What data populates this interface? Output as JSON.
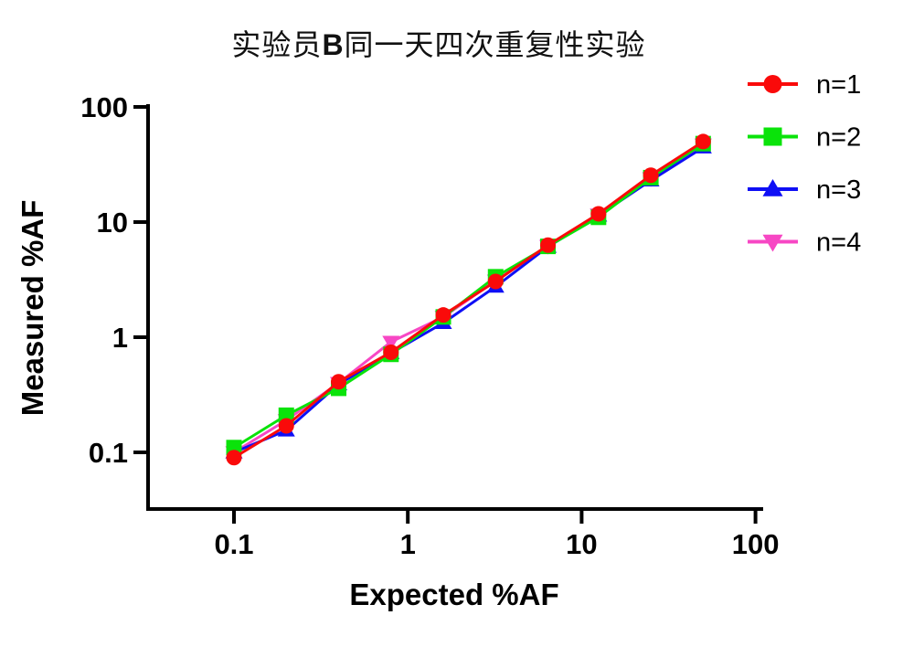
{
  "figure": {
    "title": {
      "prefix": "实验员",
      "bold_part": "B",
      "suffix": "同一天四次重复性实验"
    }
  },
  "chart_data": {
    "type": "line",
    "title": "实验员B同一天四次重复性实验",
    "xlabel": "Expected %AF",
    "ylabel": "Measured %AF",
    "x_scale": "log",
    "y_scale": "log",
    "x_ticks": [
      0.1,
      1,
      10,
      100
    ],
    "y_ticks": [
      0.1,
      1,
      10,
      100
    ],
    "x_range": [
      0.032,
      110
    ],
    "y_range": [
      0.032,
      105
    ],
    "grid": false,
    "legend_position": "right-top",
    "axis_color": "#000000",
    "x": [
      0.1,
      0.2,
      0.4,
      0.8,
      1.6,
      3.2,
      6.4,
      12.5,
      25,
      50
    ],
    "series": [
      {
        "name": "n=1",
        "color": "#FA0A0A",
        "marker": "circle",
        "values": [
          0.09,
          0.17,
          0.41,
          0.74,
          1.56,
          3.05,
          6.3,
          11.8,
          25.5,
          50
        ]
      },
      {
        "name": "n=2",
        "color": "#0AE30A",
        "marker": "square",
        "values": [
          0.11,
          0.21,
          0.36,
          0.71,
          1.5,
          3.35,
          6.15,
          11.0,
          24.3,
          48
        ]
      },
      {
        "name": "n=3",
        "color": "#0F0FF5",
        "marker": "triangle-up",
        "values": [
          0.1,
          0.155,
          0.39,
          0.73,
          1.33,
          2.75,
          6.1,
          11.4,
          23.0,
          44.5
        ]
      },
      {
        "name": "n=4",
        "color": "#F747C4",
        "marker": "triangle-down",
        "values": [
          0.1,
          0.19,
          0.4,
          0.91,
          1.5,
          3.1,
          6.2,
          11.6,
          24.0,
          47
        ]
      }
    ]
  }
}
